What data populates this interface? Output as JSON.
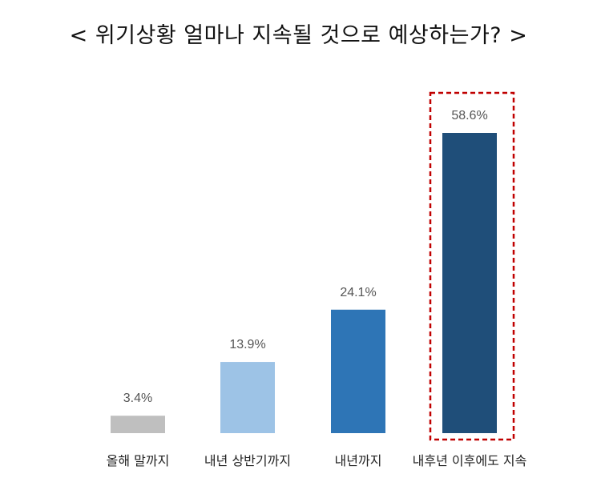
{
  "title": "< 위기상황 얼마나 지속될 것으로 예상하는가? >",
  "chart_data": {
    "type": "bar",
    "title": "< 위기상황 얼마나 지속될 것으로 예상하는가? >",
    "categories": [
      "올해 말까지",
      "내년 상반기까지",
      "내년까지",
      "내후년 이후에도 지속"
    ],
    "values": [
      3.4,
      13.9,
      24.1,
      58.6
    ],
    "value_labels": [
      "3.4%",
      "13.9%",
      "24.1%",
      "58.6%"
    ],
    "unit": "%",
    "colors": [
      "#bfbfbf",
      "#9dc3e6",
      "#2e75b6",
      "#1f4e79"
    ],
    "highlight": {
      "category_index": 3,
      "border_color": "#c00000",
      "style": "dashed"
    },
    "xlabel": "",
    "ylabel": "",
    "ylim": [
      0,
      58.6
    ],
    "grid": false,
    "axes_visible": false
  }
}
